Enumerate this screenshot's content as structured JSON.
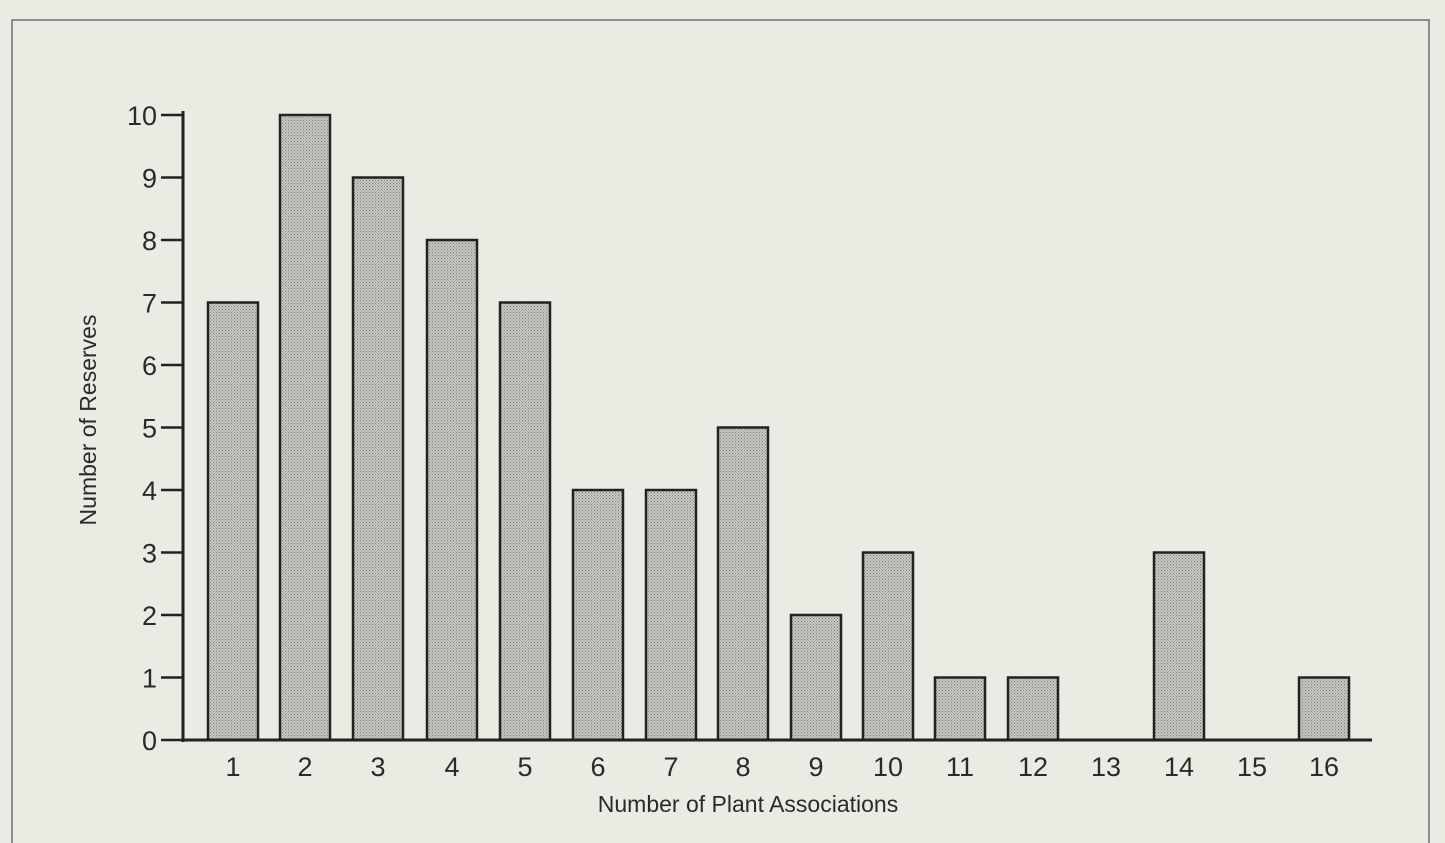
{
  "chart_data": {
    "type": "bar",
    "categories": [
      "1",
      "2",
      "3",
      "4",
      "5",
      "6",
      "7",
      "8",
      "9",
      "10",
      "11",
      "12",
      "13",
      "14",
      "15",
      "16"
    ],
    "values": [
      7,
      10,
      9,
      8,
      7,
      4,
      4,
      5,
      2,
      3,
      1,
      1,
      0,
      3,
      0,
      1
    ],
    "xlabel": "Number of Plant Associations",
    "ylabel": "Number of Reserves",
    "ylim": [
      0,
      10
    ],
    "yticks": [
      "0",
      "1",
      "2",
      "3",
      "4",
      "5",
      "6",
      "7",
      "8",
      "9",
      "10"
    ],
    "grid": false,
    "legend": "none",
    "bar_fill": "#bdbdb7",
    "bar_stroke": "#222222",
    "axis_color": "#222222"
  }
}
